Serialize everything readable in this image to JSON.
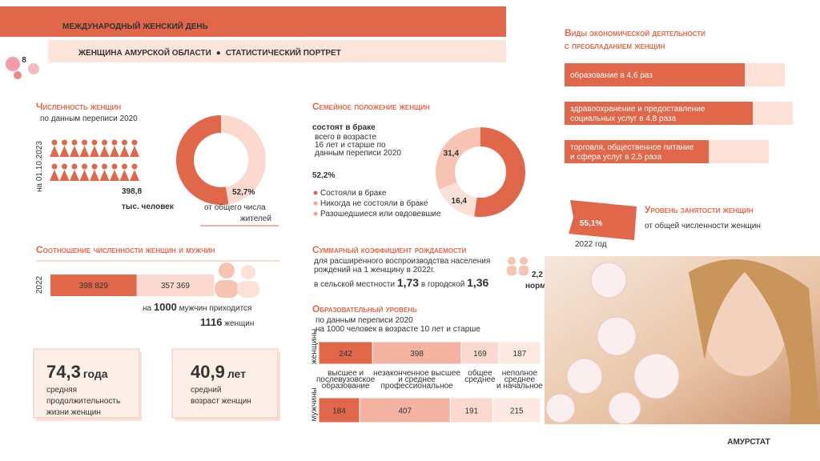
{
  "header": {
    "logo": "8",
    "title": "МЕЖДУНАРОДНЫЙ ЖЕНСКИЙ ДЕНЬ",
    "subtitle_left": "ЖЕНЩИНА АМУРСКОЙ ОБЛАСТИ",
    "subtitle_right": "СТАТИСТИЧЕСКИЙ ПОРТРЕТ"
  },
  "population": {
    "title": "Численность женщин",
    "note": "по данным переписи 2020",
    "date": "на 01.10.2023",
    "value": "398,8",
    "unit": "тыс. человек",
    "share": {
      "value": 52.7,
      "label": "52,7%"
    },
    "share_text": [
      "от общего числа",
      "жителей"
    ]
  },
  "marital": {
    "title": "Семейное положение женщин",
    "subtitle": "состоят в браке",
    "note": [
      "всего в возрасте",
      "16 лет и старше по",
      "данным переписи 2020"
    ],
    "items": [
      {
        "name": "Состояли в браке",
        "value": 52.2,
        "label": "52,2%",
        "color": "#e0674a"
      },
      {
        "name": "Никогда не состояли в браке",
        "value": 31.4,
        "label": "31,4",
        "color": "#f7c4b3"
      },
      {
        "name": "Разошедшиеся или овдовевшие",
        "value": 16.4,
        "label": "16,4",
        "color": "#fbe0d7"
      }
    ]
  },
  "ratio": {
    "title": "Соотношение численности женщин и мужчин",
    "year": "2022",
    "women": {
      "value": 398829,
      "label": "398 829",
      "color": "#e0674a"
    },
    "men": {
      "value": 357369,
      "label": "357 369",
      "color": "#fbd9cf"
    },
    "line1_pre": "на",
    "line1_num": "1000",
    "line1_post": "мужчин приходится",
    "line2_num": "1116",
    "line2_post": "женщин"
  },
  "cards": [
    {
      "value": "74,3",
      "unit": "года",
      "text": [
        "средняя",
        "продолжительность",
        "жизни женщин"
      ]
    },
    {
      "value": "40,9",
      "unit": "лет",
      "text": [
        "средний",
        "возраст женщин"
      ]
    }
  ],
  "fertility": {
    "title": "Суммарный коэффициент рождаемости",
    "note": [
      "для расширенного воспроизводства населения",
      "рождений на 1 женщину в 2022г."
    ],
    "rural_label": "в сельской местности",
    "rural": "1,73",
    "urban_label": "в городской",
    "urban": "1,36",
    "norm": "2,2",
    "norm_label": "норма"
  },
  "education": {
    "title": "Образовательный уровень",
    "note": [
      "по данным переписи 2020",
      "на 1000 человек в возрасте 10 лет и старше"
    ],
    "categories": [
      [
        "высшее и",
        "послевузовское",
        "образование"
      ],
      [
        "незаконченное высшее",
        "и среднее",
        "профессиональное"
      ],
      [
        "общее",
        "среднее"
      ],
      [
        "неполное",
        "среднее",
        "и начальное"
      ]
    ],
    "colors": [
      "#e0674a",
      "#f4b3a0",
      "#fbd9cf",
      "#fde8e2"
    ],
    "series": [
      {
        "name": "женщины",
        "values": [
          242,
          398,
          169,
          187
        ]
      },
      {
        "name": "мужчины",
        "values": [
          184,
          407,
          191,
          215
        ]
      }
    ]
  },
  "economy": {
    "title": [
      "Виды экономической деятельности",
      "с преобладанием женщин"
    ],
    "items": [
      [
        "образование  в 4,6 раз"
      ],
      [
        "здравоохранение  и предоставление",
        "социальных  услуг в 4,8 раза"
      ],
      [
        "торговля,  общественное питание",
        "и сфера  услуг в 2,5 раза"
      ]
    ]
  },
  "employment": {
    "value": "55,1%",
    "year": "2022 год",
    "title": "Уровень занятости женщин",
    "text": "от общей численности  женщин"
  },
  "footer": {
    "brand": "АМУРСТАТ"
  }
}
